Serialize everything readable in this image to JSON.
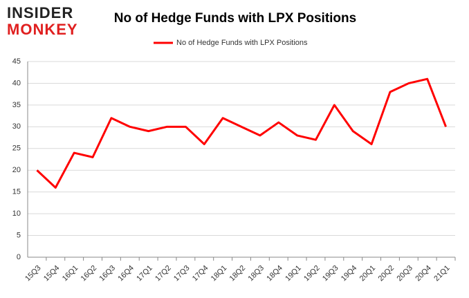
{
  "logo": {
    "line1": "INSIDER",
    "line2": "MONKEY"
  },
  "chart_data": {
    "type": "line",
    "title": "No of Hedge Funds with LPX Positions",
    "categories": [
      "15Q3",
      "15Q4",
      "16Q1",
      "16Q2",
      "16Q3",
      "16Q4",
      "17Q1",
      "17Q2",
      "17Q3",
      "17Q4",
      "18Q1",
      "18Q2",
      "18Q3",
      "18Q4",
      "19Q1",
      "19Q2",
      "19Q3",
      "19Q4",
      "20Q1",
      "20Q2",
      "20Q3",
      "20Q4",
      "21Q1"
    ],
    "series": [
      {
        "name": "No of Hedge Funds with LPX Positions",
        "color": "#ff0000",
        "values": [
          20,
          16,
          24,
          23,
          32,
          30,
          29,
          30,
          30,
          26,
          32,
          30,
          28,
          31,
          28,
          27,
          35,
          29,
          26,
          38,
          40,
          41,
          30
        ]
      }
    ],
    "ylim": [
      0,
      45
    ],
    "yticks": [
      0,
      5,
      10,
      15,
      20,
      25,
      30,
      35,
      40,
      45
    ],
    "grid": true,
    "legend": "top"
  }
}
